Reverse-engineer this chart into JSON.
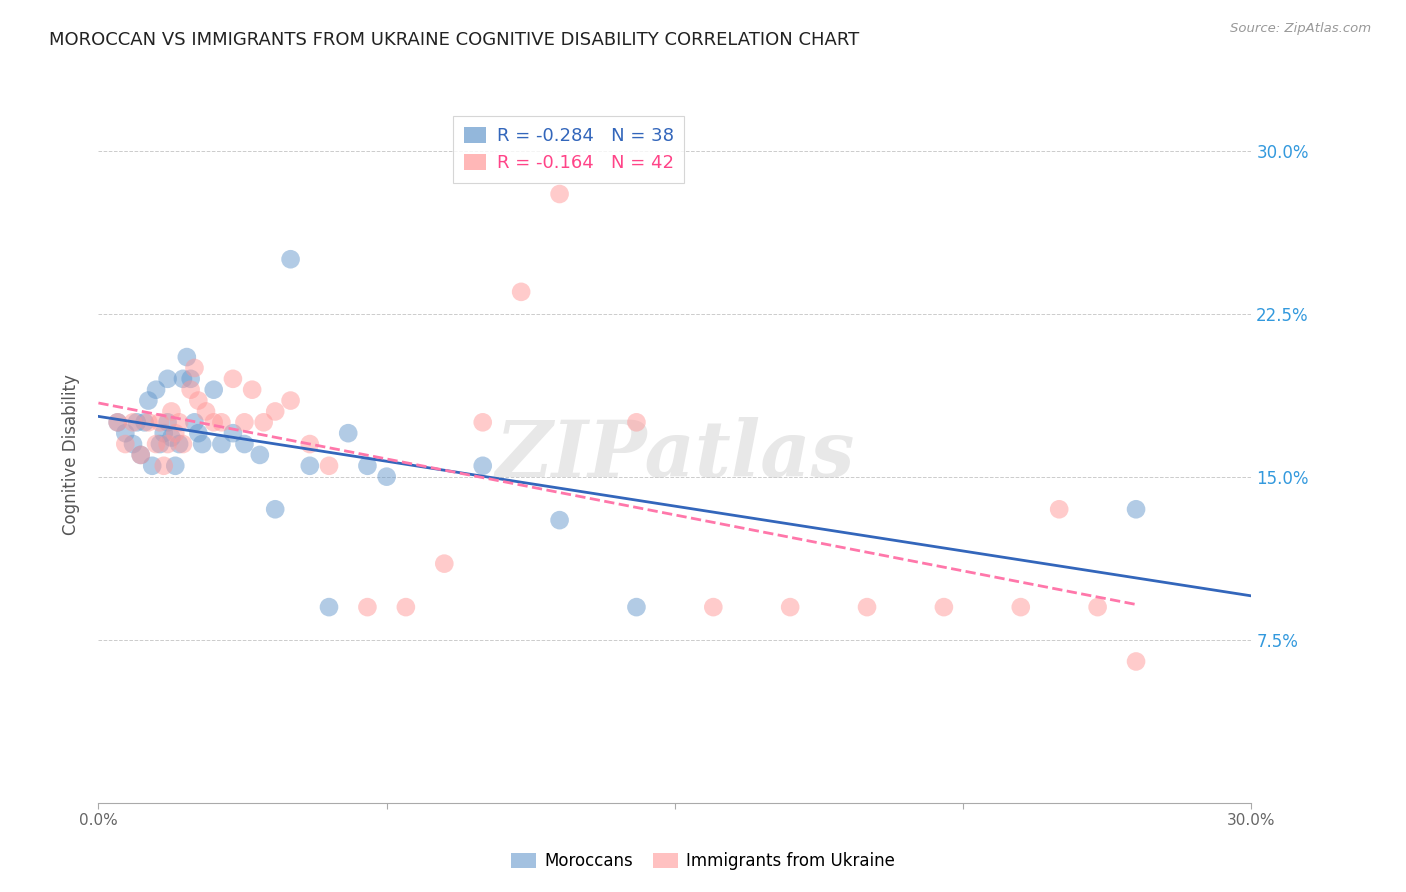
{
  "title": "MOROCCAN VS IMMIGRANTS FROM UKRAINE COGNITIVE DISABILITY CORRELATION CHART",
  "source": "Source: ZipAtlas.com",
  "ylabel": "Cognitive Disability",
  "right_yticks": [
    "30.0%",
    "22.5%",
    "15.0%",
    "7.5%"
  ],
  "right_ytick_vals": [
    0.3,
    0.225,
    0.15,
    0.075
  ],
  "xlim": [
    0.0,
    0.3
  ],
  "ylim": [
    0.0,
    0.32
  ],
  "moroccan_R": -0.284,
  "moroccan_N": 38,
  "ukraine_R": -0.164,
  "ukraine_N": 42,
  "moroccan_color": "#6699CC",
  "ukraine_color": "#FF9999",
  "moroccan_line_color": "#3366BB",
  "ukraine_line_color": "#FF77AA",
  "watermark": "ZIPatlas",
  "moroccan_x": [
    0.005,
    0.007,
    0.009,
    0.01,
    0.011,
    0.012,
    0.013,
    0.014,
    0.015,
    0.016,
    0.017,
    0.018,
    0.018,
    0.019,
    0.02,
    0.021,
    0.022,
    0.023,
    0.024,
    0.025,
    0.026,
    0.027,
    0.03,
    0.032,
    0.035,
    0.038,
    0.042,
    0.046,
    0.05,
    0.055,
    0.06,
    0.065,
    0.07,
    0.075,
    0.1,
    0.12,
    0.14,
    0.27
  ],
  "moroccan_y": [
    0.175,
    0.17,
    0.165,
    0.175,
    0.16,
    0.175,
    0.185,
    0.155,
    0.19,
    0.165,
    0.17,
    0.175,
    0.195,
    0.168,
    0.155,
    0.165,
    0.195,
    0.205,
    0.195,
    0.175,
    0.17,
    0.165,
    0.19,
    0.165,
    0.17,
    0.165,
    0.16,
    0.135,
    0.25,
    0.155,
    0.09,
    0.17,
    0.155,
    0.15,
    0.155,
    0.13,
    0.09,
    0.135
  ],
  "ukraine_x": [
    0.005,
    0.007,
    0.009,
    0.011,
    0.013,
    0.015,
    0.016,
    0.017,
    0.018,
    0.019,
    0.02,
    0.021,
    0.022,
    0.024,
    0.025,
    0.026,
    0.028,
    0.03,
    0.032,
    0.035,
    0.038,
    0.04,
    0.043,
    0.046,
    0.05,
    0.055,
    0.06,
    0.07,
    0.08,
    0.09,
    0.1,
    0.11,
    0.12,
    0.14,
    0.16,
    0.18,
    0.2,
    0.22,
    0.24,
    0.25,
    0.26,
    0.27
  ],
  "ukraine_y": [
    0.175,
    0.165,
    0.175,
    0.16,
    0.175,
    0.165,
    0.175,
    0.155,
    0.165,
    0.18,
    0.17,
    0.175,
    0.165,
    0.19,
    0.2,
    0.185,
    0.18,
    0.175,
    0.175,
    0.195,
    0.175,
    0.19,
    0.175,
    0.18,
    0.185,
    0.165,
    0.155,
    0.09,
    0.09,
    0.11,
    0.175,
    0.235,
    0.28,
    0.175,
    0.09,
    0.09,
    0.09,
    0.09,
    0.09,
    0.135,
    0.09,
    0.065
  ]
}
